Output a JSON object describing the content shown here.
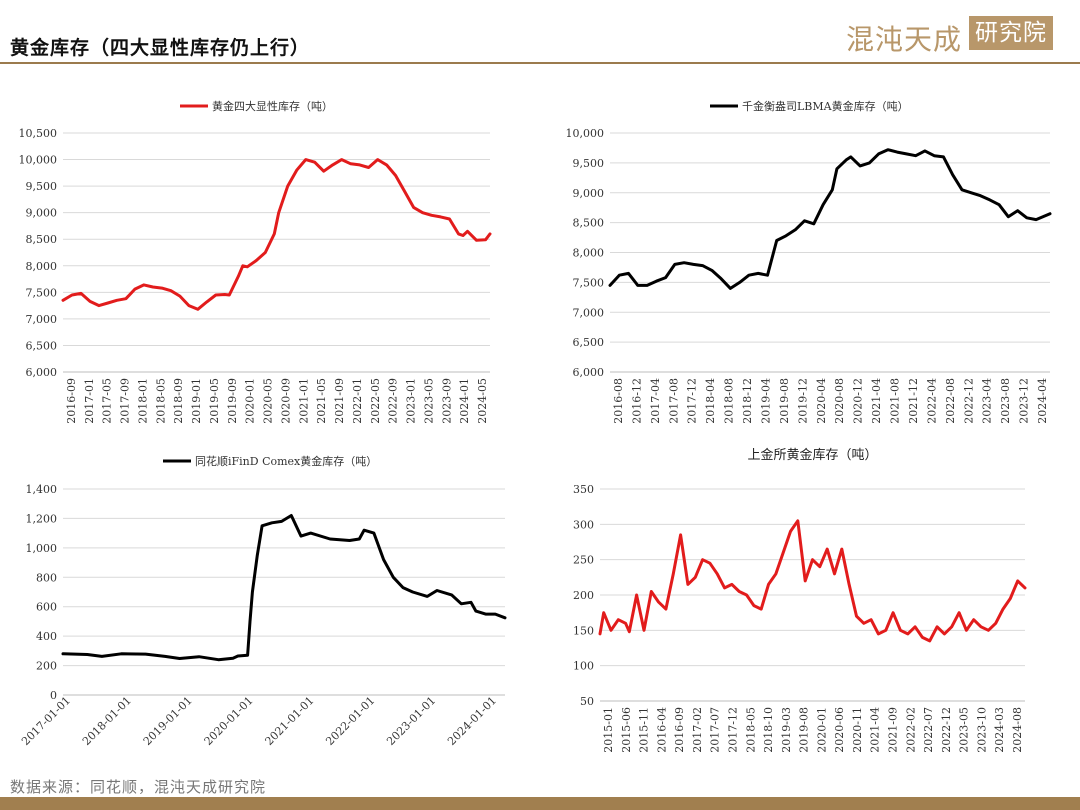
{
  "header": {
    "title": "黄金库存（四大显性库存仍上行）",
    "brand_left": "混沌天成",
    "brand_right": "研究院"
  },
  "footer": {
    "source": "数据来源：同花顺，混沌天成研究院"
  },
  "colors": {
    "accent": "#b8976a",
    "red": "#e21c1c",
    "black": "#000000"
  },
  "chart_data": [
    {
      "type": "line",
      "legend": "黄金四大显性库存（吨）",
      "color": "#e21c1c",
      "ylim": [
        6000,
        10500
      ],
      "yticks": [
        "6,000",
        "6,500",
        "7,000",
        "7,500",
        "8,000",
        "8,500",
        "9,000",
        "9,500",
        "10,000",
        "10,500"
      ],
      "xticks": [
        "2016-09",
        "2017-01",
        "2017-05",
        "2017-09",
        "2018-01",
        "2018-05",
        "2018-09",
        "2019-01",
        "2019-05",
        "2019-09",
        "2020-01",
        "2020-05",
        "2020-09",
        "2021-01",
        "2021-05",
        "2021-09",
        "2022-01",
        "2022-05",
        "2022-09",
        "2023-01",
        "2023-05",
        "2023-09",
        "2024-01",
        "2024-05"
      ],
      "x_start": "2016-09",
      "x_end": "2024-08",
      "points": [
        [
          "2016-09",
          7350
        ],
        [
          "2016-11",
          7450
        ],
        [
          "2017-01",
          7480
        ],
        [
          "2017-03",
          7330
        ],
        [
          "2017-05",
          7250
        ],
        [
          "2017-07",
          7300
        ],
        [
          "2017-09",
          7350
        ],
        [
          "2017-11",
          7380
        ],
        [
          "2018-01",
          7560
        ],
        [
          "2018-03",
          7640
        ],
        [
          "2018-05",
          7600
        ],
        [
          "2018-07",
          7580
        ],
        [
          "2018-09",
          7530
        ],
        [
          "2018-11",
          7430
        ],
        [
          "2019-01",
          7250
        ],
        [
          "2019-03",
          7180
        ],
        [
          "2019-05",
          7320
        ],
        [
          "2019-07",
          7450
        ],
        [
          "2019-09",
          7460
        ],
        [
          "2019-10",
          7450
        ],
        [
          "2019-12",
          7800
        ],
        [
          "2020-01",
          8000
        ],
        [
          "2020-02",
          7980
        ],
        [
          "2020-04",
          8100
        ],
        [
          "2020-06",
          8250
        ],
        [
          "2020-08",
          8600
        ],
        [
          "2020-09",
          9000
        ],
        [
          "2020-11",
          9500
        ],
        [
          "2021-01",
          9800
        ],
        [
          "2021-03",
          10000
        ],
        [
          "2021-05",
          9950
        ],
        [
          "2021-07",
          9780
        ],
        [
          "2021-09",
          9900
        ],
        [
          "2021-11",
          10000
        ],
        [
          "2022-01",
          9920
        ],
        [
          "2022-03",
          9900
        ],
        [
          "2022-05",
          9850
        ],
        [
          "2022-07",
          10000
        ],
        [
          "2022-09",
          9900
        ],
        [
          "2022-11",
          9700
        ],
        [
          "2023-01",
          9400
        ],
        [
          "2023-03",
          9100
        ],
        [
          "2023-05",
          9000
        ],
        [
          "2023-07",
          8950
        ],
        [
          "2023-09",
          8920
        ],
        [
          "2023-11",
          8880
        ],
        [
          "2024-01",
          8600
        ],
        [
          "2024-02",
          8570
        ],
        [
          "2024-03",
          8650
        ],
        [
          "2024-05",
          8480
        ],
        [
          "2024-07",
          8490
        ],
        [
          "2024-08",
          8600
        ]
      ]
    },
    {
      "type": "line",
      "legend": "千金衡盎司LBMA黄金库存（吨）",
      "color": "#000000",
      "ylim": [
        6000,
        10000
      ],
      "yticks": [
        "6,000",
        "6,500",
        "7,000",
        "7,500",
        "8,000",
        "8,500",
        "9,000",
        "9,500",
        "10,000"
      ],
      "xticks": [
        "2016-08",
        "2016-12",
        "2017-04",
        "2017-08",
        "2017-12",
        "2018-04",
        "2018-08",
        "2018-12",
        "2019-04",
        "2019-08",
        "2019-12",
        "2020-04",
        "2020-08",
        "2020-12",
        "2021-04",
        "2021-08",
        "2021-12",
        "2022-04",
        "2022-08",
        "2022-12",
        "2023-04",
        "2023-08",
        "2023-12",
        "2024-04"
      ],
      "x_start": "2016-08",
      "x_end": "2024-07",
      "points": [
        [
          "2016-08",
          7450
        ],
        [
          "2016-10",
          7620
        ],
        [
          "2016-12",
          7650
        ],
        [
          "2017-02",
          7450
        ],
        [
          "2017-04",
          7450
        ],
        [
          "2017-06",
          7520
        ],
        [
          "2017-08",
          7580
        ],
        [
          "2017-10",
          7800
        ],
        [
          "2017-12",
          7830
        ],
        [
          "2018-02",
          7800
        ],
        [
          "2018-04",
          7780
        ],
        [
          "2018-06",
          7700
        ],
        [
          "2018-08",
          7560
        ],
        [
          "2018-10",
          7400
        ],
        [
          "2018-12",
          7500
        ],
        [
          "2019-02",
          7620
        ],
        [
          "2019-04",
          7650
        ],
        [
          "2019-06",
          7620
        ],
        [
          "2019-08",
          8200
        ],
        [
          "2019-10",
          8280
        ],
        [
          "2019-12",
          8380
        ],
        [
          "2020-02",
          8530
        ],
        [
          "2020-04",
          8480
        ],
        [
          "2020-06",
          8800
        ],
        [
          "2020-08",
          9050
        ],
        [
          "2020-09",
          9400
        ],
        [
          "2020-11",
          9550
        ],
        [
          "2020-12",
          9600
        ],
        [
          "2021-02",
          9450
        ],
        [
          "2021-04",
          9500
        ],
        [
          "2021-06",
          9650
        ],
        [
          "2021-08",
          9720
        ],
        [
          "2021-10",
          9680
        ],
        [
          "2021-12",
          9650
        ],
        [
          "2022-02",
          9620
        ],
        [
          "2022-04",
          9700
        ],
        [
          "2022-06",
          9620
        ],
        [
          "2022-08",
          9600
        ],
        [
          "2022-10",
          9300
        ],
        [
          "2022-12",
          9050
        ],
        [
          "2023-02",
          9000
        ],
        [
          "2023-04",
          8950
        ],
        [
          "2023-06",
          8880
        ],
        [
          "2023-08",
          8800
        ],
        [
          "2023-10",
          8600
        ],
        [
          "2023-12",
          8700
        ],
        [
          "2024-02",
          8580
        ],
        [
          "2024-04",
          8550
        ],
        [
          "2024-07",
          8650
        ]
      ]
    },
    {
      "type": "line",
      "legend": "同花顺iFinD Comex黄金库存（吨）",
      "color": "#000000",
      "ylim": [
        0,
        1400
      ],
      "yticks": [
        "0",
        "200",
        "400",
        "600",
        "800",
        "1,000",
        "1,200",
        "1,400"
      ],
      "xticks": [
        "2017-01-01",
        "2018-01-01",
        "2019-01-01",
        "2020-01-01",
        "2021-01-01",
        "2022-01-01",
        "2023-01-01",
        "2024-01-01"
      ],
      "x_start": "2017-01",
      "x_end": "2024-08",
      "points": [
        [
          "2017-01",
          280
        ],
        [
          "2017-06",
          275
        ],
        [
          "2017-09",
          262
        ],
        [
          "2018-01",
          280
        ],
        [
          "2018-06",
          278
        ],
        [
          "2018-10",
          262
        ],
        [
          "2019-01",
          248
        ],
        [
          "2019-05",
          260
        ],
        [
          "2019-09",
          240
        ],
        [
          "2019-12",
          250
        ],
        [
          "2020-01",
          265
        ],
        [
          "2020-03",
          270
        ],
        [
          "2020-03.5",
          500
        ],
        [
          "2020-04",
          700
        ],
        [
          "2020-05",
          950
        ],
        [
          "2020-06",
          1150
        ],
        [
          "2020-08",
          1170
        ],
        [
          "2020-10",
          1180
        ],
        [
          "2020-12",
          1220
        ],
        [
          "2021-02",
          1080
        ],
        [
          "2021-04",
          1100
        ],
        [
          "2021-08",
          1060
        ],
        [
          "2021-12",
          1050
        ],
        [
          "2022-02",
          1060
        ],
        [
          "2022-03",
          1120
        ],
        [
          "2022-05",
          1100
        ],
        [
          "2022-07",
          920
        ],
        [
          "2022-09",
          800
        ],
        [
          "2022-11",
          730
        ],
        [
          "2023-01",
          700
        ],
        [
          "2023-04",
          670
        ],
        [
          "2023-06",
          710
        ],
        [
          "2023-09",
          680
        ],
        [
          "2023-11",
          620
        ],
        [
          "2024-01",
          630
        ],
        [
          "2024-02",
          570
        ],
        [
          "2024-04",
          550
        ],
        [
          "2024-06",
          550
        ],
        [
          "2024-08",
          525
        ]
      ]
    },
    {
      "type": "line",
      "title": "上金所黄金库存（吨）",
      "color": "#e21c1c",
      "ylim": [
        50,
        350
      ],
      "yticks": [
        "50",
        "100",
        "150",
        "200",
        "250",
        "300",
        "350"
      ],
      "xticks": [
        "2015-01",
        "2015-06",
        "2015-11",
        "2016-04",
        "2016-09",
        "2017-02",
        "2017-07",
        "2017-12",
        "2018-05",
        "2018-10",
        "2019-03",
        "2019-08",
        "2020-01",
        "2020-06",
        "2020-11",
        "2021-04",
        "2021-09",
        "2022-02",
        "2022-07",
        "2022-12",
        "2023-05",
        "2023-10",
        "2024-03",
        "2024-08"
      ],
      "x_start": "2015-01",
      "x_end": "2024-09",
      "points": [
        [
          "2015-01",
          145
        ],
        [
          "2015-02",
          175
        ],
        [
          "2015-04",
          150
        ],
        [
          "2015-06",
          165
        ],
        [
          "2015-08",
          160
        ],
        [
          "2015-09",
          148
        ],
        [
          "2015-11",
          200
        ],
        [
          "2016-01",
          150
        ],
        [
          "2016-03",
          205
        ],
        [
          "2016-05",
          190
        ],
        [
          "2016-07",
          180
        ],
        [
          "2016-09",
          230
        ],
        [
          "2016-11",
          285
        ],
        [
          "2017-01",
          215
        ],
        [
          "2017-03",
          225
        ],
        [
          "2017-05",
          250
        ],
        [
          "2017-07",
          245
        ],
        [
          "2017-09",
          230
        ],
        [
          "2017-11",
          210
        ],
        [
          "2018-01",
          215
        ],
        [
          "2018-03",
          205
        ],
        [
          "2018-05",
          200
        ],
        [
          "2018-07",
          185
        ],
        [
          "2018-09",
          180
        ],
        [
          "2018-11",
          215
        ],
        [
          "2019-01",
          230
        ],
        [
          "2019-03",
          260
        ],
        [
          "2019-05",
          290
        ],
        [
          "2019-07",
          305
        ],
        [
          "2019-09",
          220
        ],
        [
          "2019-11",
          250
        ],
        [
          "2020-01",
          240
        ],
        [
          "2020-03",
          265
        ],
        [
          "2020-05",
          230
        ],
        [
          "2020-07",
          265
        ],
        [
          "2020-09",
          215
        ],
        [
          "2020-11",
          170
        ],
        [
          "2021-01",
          160
        ],
        [
          "2021-03",
          165
        ],
        [
          "2021-05",
          145
        ],
        [
          "2021-07",
          150
        ],
        [
          "2021-09",
          175
        ],
        [
          "2021-11",
          150
        ],
        [
          "2022-01",
          145
        ],
        [
          "2022-03",
          155
        ],
        [
          "2022-05",
          140
        ],
        [
          "2022-07",
          135
        ],
        [
          "2022-09",
          155
        ],
        [
          "2022-11",
          145
        ],
        [
          "2023-01",
          155
        ],
        [
          "2023-03",
          175
        ],
        [
          "2023-05",
          150
        ],
        [
          "2023-07",
          165
        ],
        [
          "2023-09",
          155
        ],
        [
          "2023-11",
          150
        ],
        [
          "2024-01",
          160
        ],
        [
          "2024-03",
          180
        ],
        [
          "2024-05",
          195
        ],
        [
          "2024-07",
          220
        ],
        [
          "2024-09",
          210
        ]
      ]
    }
  ]
}
